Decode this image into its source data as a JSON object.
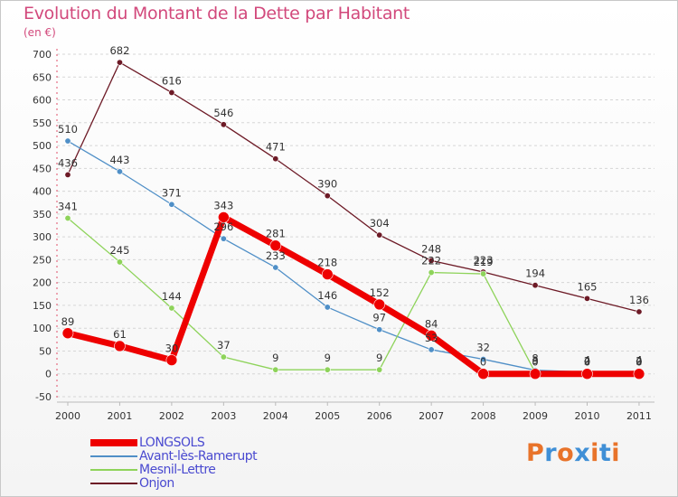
{
  "title": "Evolution du Montant de la Dette par Habitant",
  "subtitle": "(en €)",
  "logo": {
    "text": "Proxiti",
    "colors": [
      "#e8732a",
      "#3f8fd6",
      "#e8732a",
      "#3f8fd6",
      "#e8732a",
      "#3f8fd6",
      "#e8732a"
    ]
  },
  "chart_data": {
    "type": "line",
    "title": "Evolution du Montant de la Dette par Habitant",
    "ylabel": "(en €)",
    "xlabel": "",
    "ylim": [
      -50,
      700
    ],
    "ytick_step": 50,
    "categories": [
      "2000",
      "2001",
      "2002",
      "2003",
      "2004",
      "2005",
      "2006",
      "2007",
      "2008",
      "2009",
      "2010",
      "2011"
    ],
    "series": [
      {
        "name": "Onjon",
        "color": "#6d1a26",
        "values": [
          436,
          682,
          616,
          546,
          471,
          390,
          304,
          248,
          223,
          194,
          165,
          136
        ]
      },
      {
        "name": "Avant-lès-Ramerupt",
        "color": "#4f8fc7",
        "values": [
          510,
          443,
          371,
          296,
          233,
          146,
          97,
          53,
          32,
          8,
          4,
          4
        ]
      },
      {
        "name": "Mesnil-Lettre",
        "color": "#8ed35a",
        "values": [
          341,
          245,
          144,
          37,
          9,
          9,
          9,
          222,
          219,
          3,
          2,
          2
        ]
      },
      {
        "name": "LONGSOLS",
        "color": "#ee0000",
        "values": [
          89,
          61,
          30,
          343,
          281,
          218,
          152,
          84,
          0,
          0,
          0,
          0
        ]
      }
    ],
    "legend_order": [
      "LONGSOLS",
      "Avant-lès-Ramerupt",
      "Mesnil-Lettre",
      "Onjon"
    ],
    "legend_position": "bottom-left",
    "grid": "horizontal-dashed"
  }
}
